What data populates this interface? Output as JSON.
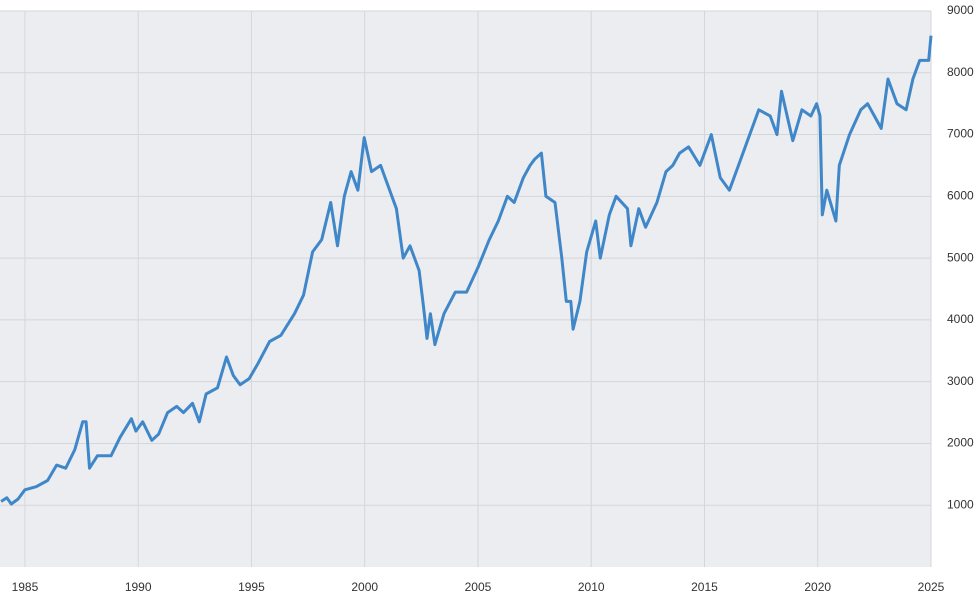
{
  "chart_data": {
    "type": "line",
    "x": [
      1983.95,
      1984.2,
      1984.4,
      1984.7,
      1985.0,
      1985.5,
      1986.0,
      1986.4,
      1986.8,
      1987.2,
      1987.55,
      1987.7,
      1987.85,
      1988.2,
      1988.8,
      1989.2,
      1989.7,
      1989.9,
      1990.2,
      1990.6,
      1990.9,
      1991.3,
      1991.7,
      1992.0,
      1992.4,
      1992.7,
      1993.0,
      1993.5,
      1993.9,
      1994.2,
      1994.5,
      1994.9,
      1995.3,
      1995.8,
      1996.3,
      1996.9,
      1997.3,
      1997.7,
      1998.1,
      1998.5,
      1998.8,
      1999.1,
      1999.4,
      1999.7,
      1999.98,
      2000.3,
      2000.7,
      2001.0,
      2001.4,
      2001.7,
      2002.0,
      2002.4,
      2002.6,
      2002.75,
      2002.9,
      2003.1,
      2003.5,
      2004.0,
      2004.5,
      2005.0,
      2005.5,
      2005.9,
      2006.3,
      2006.6,
      2007.0,
      2007.3,
      2007.5,
      2007.8,
      2008.0,
      2008.4,
      2008.7,
      2008.9,
      2009.1,
      2009.2,
      2009.5,
      2009.8,
      2010.2,
      2010.4,
      2010.8,
      2011.1,
      2011.6,
      2011.75,
      2012.1,
      2012.4,
      2012.9,
      2013.3,
      2013.6,
      2013.9,
      2014.3,
      2014.8,
      2015.3,
      2015.7,
      2016.1,
      2016.5,
      2016.9,
      2017.4,
      2017.9,
      2018.2,
      2018.4,
      2018.9,
      2019.3,
      2019.7,
      2019.95,
      2020.1,
      2020.2,
      2020.4,
      2020.8,
      2020.95,
      2021.4,
      2021.9,
      2022.2,
      2022.5,
      2022.8,
      2023.1,
      2023.5,
      2023.9,
      2024.2,
      2024.5,
      2024.9,
      2025.0
    ],
    "series": [
      {
        "color": "#3f87c8",
        "values": [
          1060,
          1120,
          1020,
          1100,
          1250,
          1300,
          1400,
          1650,
          1600,
          1900,
          2350,
          2350,
          1600,
          1800,
          1800,
          2100,
          2400,
          2200,
          2350,
          2050,
          2150,
          2500,
          2600,
          2500,
          2650,
          2350,
          2800,
          2900,
          3400,
          3100,
          2950,
          3050,
          3300,
          3650,
          3750,
          4100,
          4400,
          5100,
          5300,
          5900,
          5200,
          6000,
          6400,
          6100,
          6950,
          6400,
          6500,
          6200,
          5800,
          5000,
          5200,
          4800,
          4200,
          3700,
          4100,
          3600,
          4100,
          4450,
          4450,
          4850,
          5300,
          5600,
          6000,
          5900,
          6300,
          6500,
          6600,
          6700,
          6000,
          5900,
          5000,
          4300,
          4300,
          3850,
          4300,
          5100,
          5600,
          5000,
          5700,
          6000,
          5800,
          5200,
          5800,
          5500,
          5900,
          6400,
          6500,
          6700,
          6800,
          6500,
          7000,
          6300,
          6100,
          6500,
          6900,
          7400,
          7300,
          7000,
          7700,
          6900,
          7400,
          7300,
          7500,
          7300,
          5700,
          6100,
          5600,
          6500,
          7000,
          7400,
          7500,
          7300,
          7100,
          7900,
          7500,
          7400,
          7900,
          8200,
          8200,
          8600
        ]
      }
    ],
    "xlim": [
      1983.9,
      2025
    ],
    "xticks": [
      1985,
      1990,
      1995,
      2000,
      2005,
      2010,
      2015,
      2020,
      2025
    ],
    "ylim": [
      0,
      9000
    ],
    "yticks": [
      1000,
      2000,
      3000,
      4000,
      5000,
      6000,
      7000,
      8000,
      9000
    ],
    "grid": true
  }
}
